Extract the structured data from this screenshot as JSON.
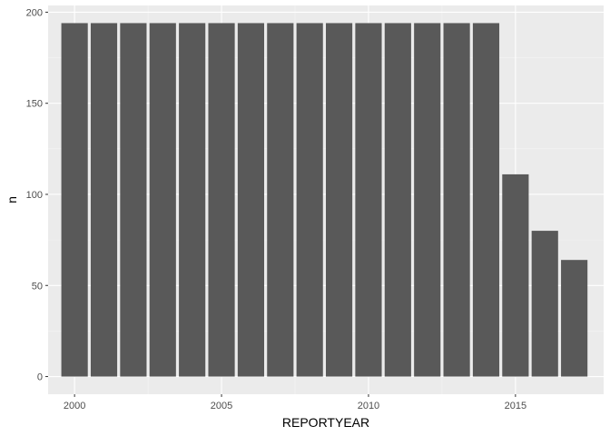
{
  "chart_data": {
    "type": "bar",
    "xlabel": "REPORTYEAR",
    "ylabel": "n",
    "x": [
      2000,
      2001,
      2002,
      2003,
      2004,
      2005,
      2006,
      2007,
      2008,
      2009,
      2010,
      2011,
      2012,
      2013,
      2014,
      2015,
      2016,
      2017
    ],
    "values": [
      194,
      194,
      194,
      194,
      194,
      194,
      194,
      194,
      194,
      194,
      194,
      194,
      194,
      194,
      194,
      111,
      80,
      64
    ],
    "xlim": [
      1999.1,
      2018.0
    ],
    "ylim": [
      -9.7,
      203.7
    ],
    "xticks": [
      2000,
      2005,
      2010,
      2015
    ],
    "xtick_labels": [
      "2000",
      "2005",
      "2010",
      "2015"
    ],
    "yticks": [
      0,
      50,
      100,
      150,
      200
    ],
    "ytick_labels": [
      "0",
      "50",
      "100",
      "150",
      "200"
    ],
    "grid": true,
    "colors": {
      "panel_background": "#ebebeb",
      "grid_major": "#ffffff",
      "grid_minor": "#f5f5f5",
      "bar_fill": "#595959"
    }
  }
}
